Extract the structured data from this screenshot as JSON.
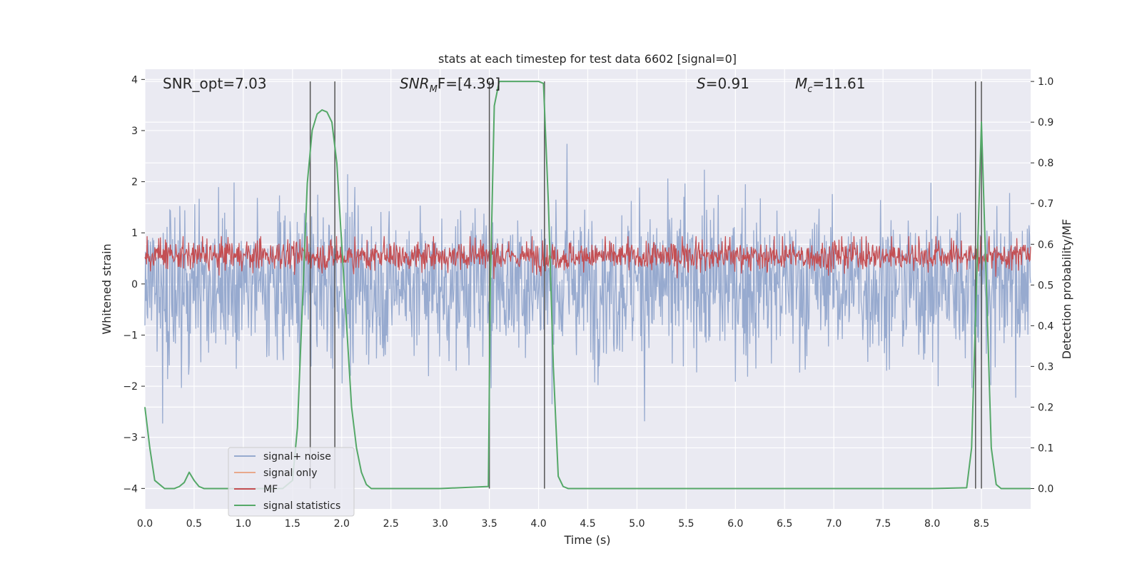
{
  "chart_data": {
    "type": "line",
    "title": "stats at each timestep for test data 6602 [signal=0]",
    "xlabel": "Time (s)",
    "ylabel": "Whitened strain",
    "ylabel_right": "Detection probability/MF",
    "xlim": [
      0,
      9
    ],
    "ylim": [
      -4.4,
      4.2
    ],
    "ylim_right": [
      -0.05,
      1.03
    ],
    "xticks": [
      "0.0",
      "0.5",
      "1.0",
      "1.5",
      "2.0",
      "2.5",
      "3.0",
      "3.5",
      "4.0",
      "4.5",
      "5.0",
      "5.5",
      "6.0",
      "6.5",
      "7.0",
      "7.5",
      "8.0",
      "8.5"
    ],
    "yticks_left": [
      "4",
      "3",
      "2",
      "1",
      "0",
      "−1",
      "−2",
      "−3",
      "−4"
    ],
    "yticks_right": [
      "1.0",
      "0.9",
      "0.8",
      "0.7",
      "0.6",
      "0.5",
      "0.4",
      "0.3",
      "0.2",
      "0.1",
      "0.0"
    ],
    "grid": true,
    "legend_position": "lower-left",
    "annotations": [
      {
        "text": "SNR_opt=7.03",
        "x": 0.2
      },
      {
        "text": "F=[4.39]",
        "math_prefix": "SNR",
        "math_sub": "M",
        "x": 2.6
      },
      {
        "text": "=0.91",
        "math_prefix": "S",
        "x": 5.6
      },
      {
        "text": "=11.61",
        "math_prefix": "M",
        "math_sub": "c",
        "x": 6.6
      }
    ],
    "series": [
      {
        "name": "signal+ noise",
        "color": "#97aacf",
        "description": "whitened noise, amplitude approx ±2.5 with spikes to ±3.8"
      },
      {
        "name": "signal only",
        "color": "#e8a98c",
        "values": []
      },
      {
        "name": "MF",
        "color": "#c44e52",
        "description": "matched filter output, approx 0.05–0.95, mean approx 0.25"
      },
      {
        "name": "signal statistics",
        "color": "#55a868",
        "x": [
          0.0,
          0.05,
          0.1,
          0.2,
          0.3,
          0.35,
          0.4,
          0.45,
          0.5,
          0.55,
          0.6,
          0.7,
          0.8,
          0.9,
          1.0,
          1.1,
          1.2,
          1.3,
          1.4,
          1.5,
          1.55,
          1.6,
          1.65,
          1.7,
          1.75,
          1.8,
          1.85,
          1.9,
          1.95,
          2.0,
          2.05,
          2.1,
          2.15,
          2.2,
          2.25,
          2.3,
          2.5,
          3.0,
          3.49,
          3.51,
          3.55,
          3.6,
          3.65,
          3.7,
          3.8,
          3.9,
          4.0,
          4.05,
          4.1,
          4.15,
          4.2,
          4.25,
          4.3,
          5.0,
          6.0,
          7.0,
          8.0,
          8.35,
          8.4,
          8.45,
          8.5,
          8.55,
          8.6,
          8.65,
          8.7,
          8.8,
          8.9,
          9.0
        ],
        "y": [
          0.2,
          0.1,
          0.02,
          0.0,
          0.0,
          0.005,
          0.015,
          0.04,
          0.02,
          0.005,
          0.0,
          0.0,
          0.0,
          0.0,
          0.0,
          0.0,
          0.0,
          0.0,
          0.0,
          0.02,
          0.15,
          0.45,
          0.75,
          0.88,
          0.92,
          0.93,
          0.925,
          0.9,
          0.8,
          0.6,
          0.4,
          0.2,
          0.1,
          0.04,
          0.01,
          0.0,
          0.0,
          0.0,
          0.005,
          0.5,
          0.94,
          1.0,
          1.0,
          1.0,
          1.0,
          1.0,
          1.0,
          0.995,
          0.7,
          0.3,
          0.03,
          0.005,
          0.0,
          0.0,
          0.0,
          0.0,
          0.0,
          0.002,
          0.1,
          0.5,
          0.9,
          0.5,
          0.1,
          0.01,
          0.0,
          0.0,
          0.0,
          0.0
        ]
      }
    ],
    "vertical_lines_x": [
      1.68,
      1.93,
      3.5,
      4.06,
      8.44,
      8.5
    ]
  }
}
